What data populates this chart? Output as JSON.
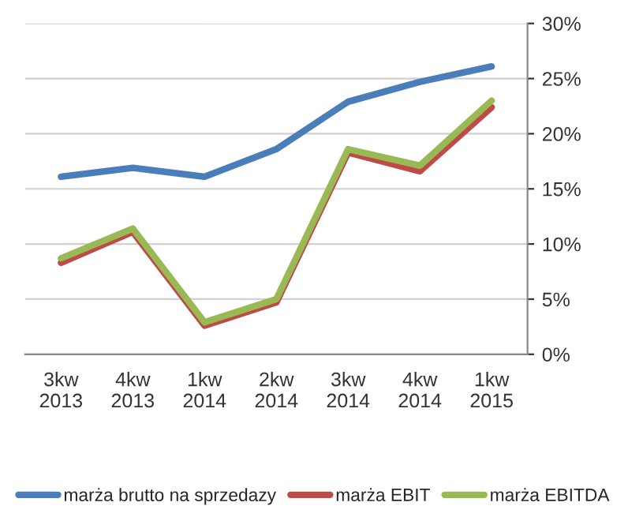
{
  "chart_data": {
    "type": "line",
    "categories": [
      "3kw\n2013",
      "4kw\n2013",
      "1kw\n2014",
      "2kw\n2014",
      "3kw\n2014",
      "4kw\n2014",
      "1kw\n2015"
    ],
    "series": [
      {
        "name": "marża brutto na sprzedazy",
        "color": "#4a7ebb",
        "values": [
          16.1,
          16.9,
          16.1,
          18.6,
          22.9,
          24.7,
          26.1
        ]
      },
      {
        "name": "marża EBIT",
        "color": "#be4b48",
        "values": [
          8.3,
          11.1,
          2.6,
          4.7,
          18.3,
          16.6,
          22.4
        ]
      },
      {
        "name": "marża EBITDA",
        "color": "#98b954",
        "values": [
          8.7,
          11.4,
          2.9,
          5.0,
          18.6,
          17.1,
          23.0
        ]
      }
    ],
    "ylim": [
      0,
      30
    ],
    "yticks": [
      {
        "value": 0,
        "label": "0%"
      },
      {
        "value": 5,
        "label": "5%"
      },
      {
        "value": 10,
        "label": "10%"
      },
      {
        "value": 15,
        "label": "15%"
      },
      {
        "value": 20,
        "label": "20%"
      },
      {
        "value": 25,
        "label": "25%"
      },
      {
        "value": 30,
        "label": "30%"
      }
    ],
    "grid": "y",
    "legend": "bottom",
    "marker": "none",
    "line_style": "solid"
  }
}
